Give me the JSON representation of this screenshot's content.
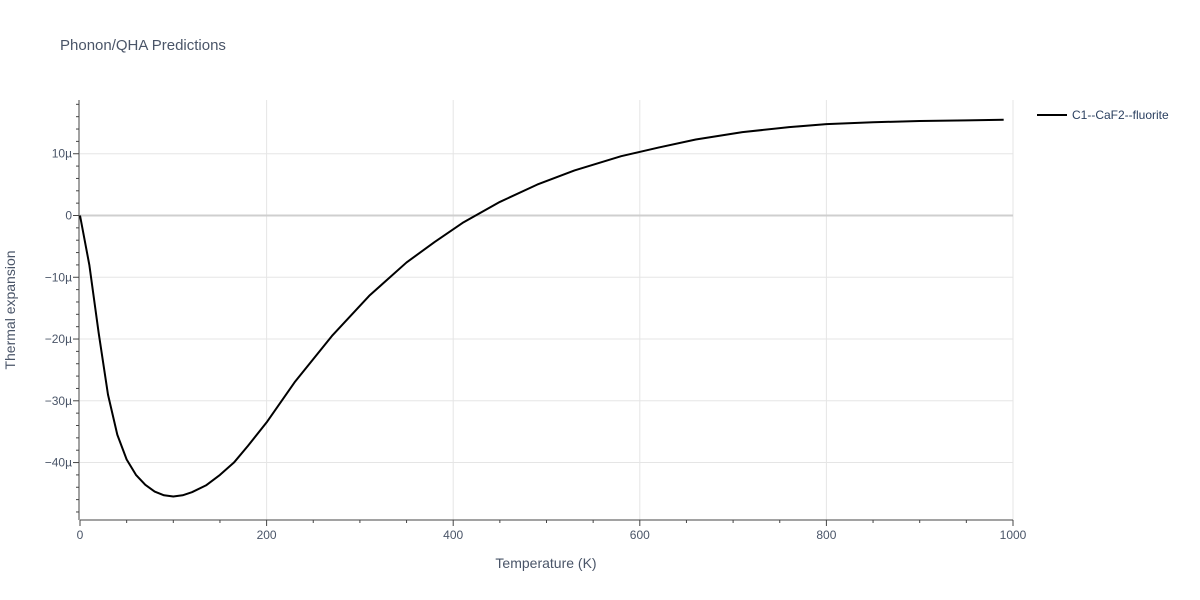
{
  "chart_data": {
    "type": "line",
    "title": "Phonon/QHA Predictions",
    "xlabel": "Temperature (K)",
    "ylabel": "Thermal expansion",
    "xlim": [
      0,
      1000
    ],
    "ylim": [
      -4.93e-05,
      1.87e-05
    ],
    "x_ticks": [
      0,
      200,
      400,
      600,
      800,
      1000
    ],
    "x_tick_labels": [
      "0",
      "200",
      "400",
      "600",
      "800",
      "1000"
    ],
    "y_ticks": [
      1e-05,
      0,
      -1e-05,
      -2e-05,
      -3e-05,
      -4e-05
    ],
    "y_tick_labels": [
      "10µ",
      "0",
      "−10µ",
      "−20µ",
      "−30µ",
      "−40µ"
    ],
    "grid": true,
    "legend_position": "top-right",
    "series": [
      {
        "name": "C1--CaF2--fluorite",
        "color": "#000000",
        "x": [
          0,
          10,
          20,
          30,
          40,
          50,
          60,
          70,
          80,
          90,
          100,
          110,
          120,
          135,
          150,
          165,
          180,
          200,
          230,
          270,
          310,
          350,
          380,
          410,
          450,
          490,
          530,
          580,
          620,
          660,
          710,
          760,
          800,
          850,
          900,
          950,
          990
        ],
        "y": [
          0,
          -8e-06,
          -1.9e-05,
          -2.9e-05,
          -3.55e-05,
          -3.95e-05,
          -4.2e-05,
          -4.36e-05,
          -4.47e-05,
          -4.53e-05,
          -4.55e-05,
          -4.53e-05,
          -4.48e-05,
          -4.37e-05,
          -4.2e-05,
          -4e-05,
          -3.73e-05,
          -3.35e-05,
          -2.7e-05,
          -1.95e-05,
          -1.3e-05,
          -7.6e-06,
          -4.3e-06,
          -1.2e-06,
          2.2e-06,
          5e-06,
          7.3e-06,
          9.6e-06,
          1.1e-05,
          1.23e-05,
          1.35e-05,
          1.43e-05,
          1.48e-05,
          1.51e-05,
          1.53e-05,
          1.54e-05,
          1.55e-05
        ]
      }
    ]
  }
}
